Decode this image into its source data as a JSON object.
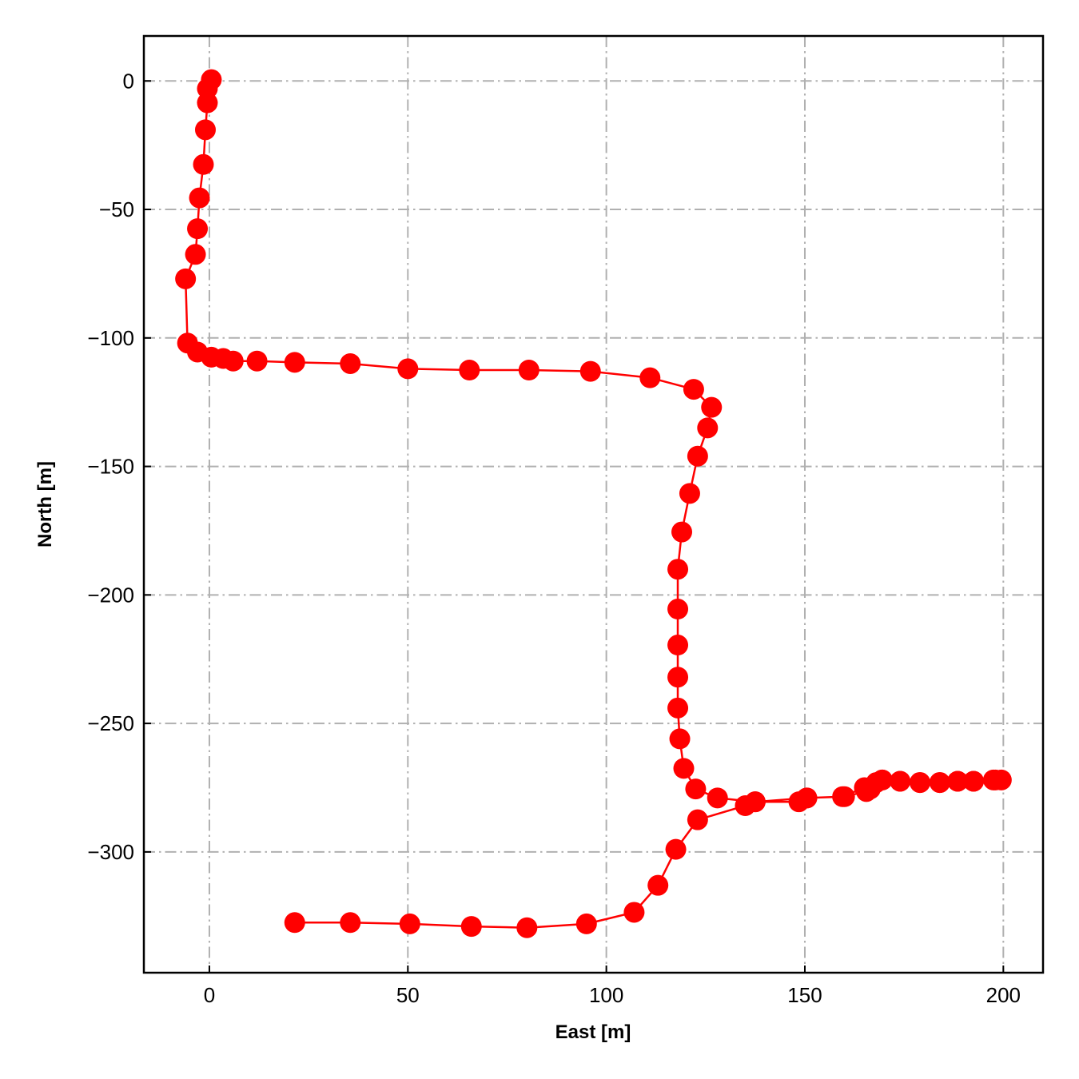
{
  "chart_data": {
    "type": "line",
    "xlabel": "East [m]",
    "ylabel": "North [m]",
    "xlim": [
      -16.5,
      210
    ],
    "ylim": [
      -347,
      17.5
    ],
    "x_ticks": [
      0,
      50,
      100,
      150,
      200
    ],
    "y_ticks": [
      0,
      -50,
      -100,
      -150,
      -200,
      -250,
      -300
    ],
    "x_tick_labels": [
      "0",
      "50",
      "100",
      "150",
      "200"
    ],
    "y_tick_labels": [
      "0",
      "−50",
      "−100",
      "−150",
      "−200",
      "−250",
      "−300"
    ],
    "grid": true,
    "grid_style": "dash-dot",
    "legend": "none",
    "colors": {
      "series": "#ff0000",
      "grid": "#b0b0b0",
      "axes": "#000000"
    },
    "series": [
      {
        "marker": "circle",
        "points": [
          [
            0.5,
            0.5
          ],
          [
            -0.5,
            -3.0
          ],
          [
            -0.5,
            -8.5
          ],
          [
            -1.0,
            -19.0
          ],
          [
            -1.5,
            -32.5
          ],
          [
            -2.5,
            -45.5
          ],
          [
            -3.0,
            -57.5
          ],
          [
            -3.5,
            -67.5
          ],
          [
            -6.0,
            -77.0
          ],
          [
            -5.5,
            -102.0
          ],
          [
            -3.0,
            -105.5
          ],
          [
            0.5,
            -107.5
          ],
          [
            3.5,
            -108.0
          ],
          [
            6.0,
            -109.0
          ],
          [
            12.0,
            -109.0
          ],
          [
            21.5,
            -109.5
          ],
          [
            35.5,
            -110.0
          ],
          [
            50.0,
            -112.0
          ],
          [
            65.5,
            -112.5
          ],
          [
            80.5,
            -112.5
          ],
          [
            96.0,
            -113.0
          ],
          [
            111.0,
            -115.5
          ],
          [
            122.0,
            -120.0
          ],
          [
            126.5,
            -127.0
          ],
          [
            125.5,
            -135.0
          ],
          [
            123.0,
            -146.0
          ],
          [
            121.0,
            -160.5
          ],
          [
            119.0,
            -175.5
          ],
          [
            118.0,
            -190.0
          ],
          [
            118.0,
            -205.5
          ],
          [
            118.0,
            -219.5
          ],
          [
            118.0,
            -232.0
          ],
          [
            118.0,
            -244.0
          ],
          [
            118.5,
            -256.0
          ],
          [
            119.5,
            -267.5
          ],
          [
            122.5,
            -275.5
          ],
          [
            128.0,
            -279.0
          ],
          [
            137.5,
            -280.5
          ],
          [
            150.5,
            -279.0
          ],
          [
            159.5,
            -278.5
          ],
          [
            165.0,
            -275.0
          ],
          [
            168.0,
            -273.0
          ],
          [
            169.5,
            -272.0
          ],
          [
            174.0,
            -272.5
          ],
          [
            179.0,
            -273.0
          ],
          [
            184.0,
            -273.0
          ],
          [
            188.5,
            -272.5
          ],
          [
            192.5,
            -272.5
          ],
          [
            197.5,
            -272.0
          ],
          [
            199.5,
            -272.0
          ],
          [
            198.0,
            -272.0
          ],
          [
            192.5,
            -272.5
          ],
          [
            188.5,
            -272.5
          ],
          [
            184.0,
            -273.0
          ],
          [
            179.0,
            -273.0
          ],
          [
            174.0,
            -272.5
          ],
          [
            169.5,
            -272.0
          ],
          [
            166.5,
            -275.5
          ],
          [
            165.5,
            -276.5
          ],
          [
            160.0,
            -278.5
          ],
          [
            150.5,
            -279.0
          ],
          [
            148.5,
            -280.5
          ],
          [
            137.5,
            -280.5
          ],
          [
            135.0,
            -282.0
          ],
          [
            123.0,
            -287.5
          ],
          [
            117.5,
            -299.0
          ],
          [
            113.0,
            -313.0
          ],
          [
            107.0,
            -323.5
          ],
          [
            95.0,
            -328.0
          ],
          [
            80.0,
            -329.5
          ],
          [
            66.0,
            -329.0
          ],
          [
            50.5,
            -328.0
          ],
          [
            35.5,
            -327.5
          ],
          [
            21.5,
            -327.5
          ]
        ]
      }
    ]
  }
}
